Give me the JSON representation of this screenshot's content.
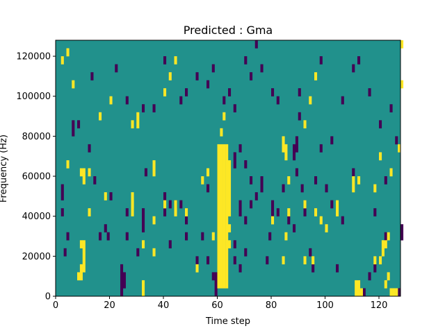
{
  "chart_data": {
    "type": "heatmap",
    "title": "Predicted : Gma",
    "xlabel": "Time step",
    "ylabel": "Frequency (Hz)",
    "xlim": [
      0,
      128
    ],
    "ylim": [
      0,
      128000
    ],
    "x_ticks": [
      0,
      20,
      40,
      60,
      80,
      100,
      120
    ],
    "y_ticks": [
      0,
      20000,
      40000,
      60000,
      80000,
      100000,
      120000
    ],
    "x_tick_labels": [
      "0",
      "20",
      "40",
      "60",
      "80",
      "100",
      "120"
    ],
    "y_tick_labels": [
      "0",
      "20000",
      "40000",
      "60000",
      "80000",
      "100000",
      "120000"
    ],
    "grid": false,
    "colormap": "viridis",
    "colors": {
      "background": "#21918c",
      "high": "#fde725",
      "low": "#440154"
    },
    "cell_height_hz": 4000,
    "background_level": 0.5,
    "cells_note_levels": {
      "high": 1,
      "low": 0
    },
    "high_cells": [
      [
        60,
        4000,
        76000
      ],
      [
        61,
        4000,
        76000
      ],
      [
        62,
        4000,
        76000
      ],
      [
        63,
        4000,
        76000
      ],
      [
        64,
        24000,
        28000
      ],
      [
        64,
        32000,
        36000
      ],
      [
        64,
        40000,
        68000
      ],
      [
        61,
        80000,
        84000
      ],
      [
        62,
        88000,
        92000
      ],
      [
        111,
        0,
        8000
      ],
      [
        112,
        0,
        8000
      ],
      [
        113,
        0,
        4000
      ],
      [
        124,
        0,
        4000
      ],
      [
        125,
        0,
        4000
      ],
      [
        126,
        0,
        4000
      ],
      [
        8,
        8000,
        12000
      ],
      [
        9,
        8000,
        16000
      ],
      [
        10,
        12000,
        24000
      ],
      [
        9,
        24000,
        28000
      ],
      [
        10,
        24000,
        28000
      ],
      [
        12,
        40000,
        44000
      ],
      [
        12,
        60000,
        64000
      ],
      [
        9,
        60000,
        64000
      ],
      [
        10,
        56000,
        64000
      ],
      [
        18,
        48000,
        52000
      ],
      [
        28,
        44000,
        48000
      ],
      [
        28,
        40000,
        52000
      ],
      [
        32,
        24000,
        28000
      ],
      [
        32,
        0,
        8000
      ],
      [
        36,
        20000,
        24000
      ],
      [
        36,
        36000,
        40000
      ],
      [
        36,
        60000,
        64000
      ],
      [
        36,
        64000,
        68000
      ],
      [
        40,
        44000,
        48000
      ],
      [
        44,
        40000,
        48000
      ],
      [
        48,
        40000,
        44000
      ],
      [
        52,
        12000,
        16000
      ],
      [
        16,
        88000,
        92000
      ],
      [
        20,
        96000,
        100000
      ],
      [
        28,
        84000,
        88000
      ],
      [
        30,
        84000,
        92000
      ],
      [
        40,
        100000,
        104000
      ],
      [
        42,
        108000,
        112000
      ],
      [
        44,
        116000,
        120000
      ],
      [
        54,
        56000,
        60000
      ],
      [
        56,
        60000,
        64000
      ],
      [
        58,
        28000,
        32000
      ],
      [
        80,
        36000,
        40000
      ],
      [
        84,
        16000,
        20000
      ],
      [
        85,
        28000,
        32000
      ],
      [
        86,
        40000,
        44000
      ],
      [
        84,
        72000,
        80000
      ],
      [
        85,
        68000,
        76000
      ],
      [
        86,
        56000,
        60000
      ],
      [
        92,
        16000,
        20000
      ],
      [
        95,
        16000,
        20000
      ],
      [
        92,
        44000,
        48000
      ],
      [
        96,
        40000,
        44000
      ],
      [
        98,
        36000,
        40000
      ],
      [
        92,
        84000,
        88000
      ],
      [
        94,
        96000,
        100000
      ],
      [
        96,
        108000,
        112000
      ],
      [
        100,
        32000,
        36000
      ],
      [
        104,
        40000,
        48000
      ],
      [
        110,
        52000,
        60000
      ],
      [
        112,
        56000,
        60000
      ],
      [
        118,
        16000,
        20000
      ],
      [
        120,
        16000,
        20000
      ],
      [
        121,
        20000,
        28000
      ],
      [
        122,
        24000,
        28000
      ],
      [
        123,
        28000,
        32000
      ],
      [
        118,
        52000,
        56000
      ],
      [
        120,
        68000,
        72000
      ],
      [
        122,
        4000,
        8000
      ],
      [
        123,
        8000,
        12000
      ],
      [
        128,
        104000,
        108000
      ],
      [
        128,
        124000,
        128000
      ],
      [
        2,
        116000,
        120000
      ],
      [
        4,
        120000,
        124000
      ],
      [
        4,
        64000,
        68000
      ],
      [
        6,
        104000,
        108000
      ],
      [
        124,
        60000,
        64000
      ],
      [
        127,
        72000,
        76000
      ]
    ],
    "low_cells": [
      [
        2,
        40000,
        44000
      ],
      [
        3,
        20000,
        24000
      ],
      [
        4,
        28000,
        32000
      ],
      [
        2,
        48000,
        56000
      ],
      [
        6,
        80000,
        88000
      ],
      [
        8,
        84000,
        88000
      ],
      [
        12,
        72000,
        76000
      ],
      [
        14,
        56000,
        60000
      ],
      [
        16,
        28000,
        32000
      ],
      [
        18,
        32000,
        36000
      ],
      [
        19,
        28000,
        32000
      ],
      [
        20,
        48000,
        52000
      ],
      [
        24,
        0,
        16000
      ],
      [
        25,
        4000,
        12000
      ],
      [
        26,
        28000,
        32000
      ],
      [
        26,
        40000,
        44000
      ],
      [
        30,
        20000,
        24000
      ],
      [
        32,
        32000,
        44000
      ],
      [
        33,
        60000,
        64000
      ],
      [
        40,
        48000,
        52000
      ],
      [
        40,
        40000,
        44000
      ],
      [
        42,
        44000,
        48000
      ],
      [
        42,
        24000,
        28000
      ],
      [
        44,
        44000,
        48000
      ],
      [
        46,
        44000,
        48000
      ],
      [
        48,
        36000,
        40000
      ],
      [
        48,
        28000,
        32000
      ],
      [
        52,
        16000,
        20000
      ],
      [
        54,
        28000,
        32000
      ],
      [
        56,
        16000,
        20000
      ],
      [
        58,
        8000,
        12000
      ],
      [
        59,
        0,
        12000
      ],
      [
        60,
        32000,
        36000
      ],
      [
        56,
        52000,
        56000
      ],
      [
        66,
        16000,
        20000
      ],
      [
        66,
        24000,
        28000
      ],
      [
        68,
        12000,
        16000
      ],
      [
        70,
        20000,
        24000
      ],
      [
        68,
        40000,
        48000
      ],
      [
        70,
        36000,
        40000
      ],
      [
        72,
        44000,
        48000
      ],
      [
        74,
        48000,
        52000
      ],
      [
        76,
        52000,
        60000
      ],
      [
        78,
        16000,
        20000
      ],
      [
        66,
        64000,
        72000
      ],
      [
        68,
        72000,
        76000
      ],
      [
        70,
        64000,
        68000
      ],
      [
        72,
        56000,
        60000
      ],
      [
        79,
        28000,
        32000
      ],
      [
        80,
        40000,
        48000
      ],
      [
        82,
        40000,
        44000
      ],
      [
        84,
        52000,
        56000
      ],
      [
        86,
        36000,
        40000
      ],
      [
        88,
        32000,
        36000
      ],
      [
        89,
        60000,
        64000
      ],
      [
        88,
        68000,
        76000
      ],
      [
        89,
        72000,
        80000
      ],
      [
        91,
        52000,
        56000
      ],
      [
        92,
        40000,
        48000
      ],
      [
        94,
        20000,
        24000
      ],
      [
        95,
        12000,
        16000
      ],
      [
        96,
        56000,
        60000
      ],
      [
        100,
        52000,
        56000
      ],
      [
        102,
        44000,
        48000
      ],
      [
        104,
        12000,
        16000
      ],
      [
        106,
        36000,
        40000
      ],
      [
        110,
        60000,
        64000
      ],
      [
        112,
        4000,
        8000
      ],
      [
        114,
        0,
        4000
      ],
      [
        116,
        8000,
        12000
      ],
      [
        118,
        12000,
        16000
      ],
      [
        118,
        40000,
        44000
      ],
      [
        122,
        56000,
        60000
      ],
      [
        122,
        28000,
        32000
      ],
      [
        128,
        28000,
        36000
      ],
      [
        127,
        0,
        4000
      ],
      [
        13,
        108000,
        112000
      ],
      [
        22,
        112000,
        116000
      ],
      [
        26,
        96000,
        100000
      ],
      [
        32,
        92000,
        96000
      ],
      [
        36,
        92000,
        96000
      ],
      [
        40,
        116000,
        120000
      ],
      [
        46,
        96000,
        100000
      ],
      [
        48,
        100000,
        104000
      ],
      [
        52,
        108000,
        112000
      ],
      [
        56,
        104000,
        108000
      ],
      [
        58,
        112000,
        116000
      ],
      [
        62,
        96000,
        100000
      ],
      [
        64,
        100000,
        104000
      ],
      [
        66,
        92000,
        96000
      ],
      [
        70,
        116000,
        120000
      ],
      [
        72,
        108000,
        112000
      ],
      [
        74,
        124000,
        128000
      ],
      [
        76,
        112000,
        116000
      ],
      [
        80,
        100000,
        104000
      ],
      [
        82,
        96000,
        100000
      ],
      [
        90,
        88000,
        92000
      ],
      [
        90,
        100000,
        104000
      ],
      [
        98,
        116000,
        120000
      ],
      [
        106,
        96000,
        100000
      ],
      [
        110,
        112000,
        116000
      ],
      [
        112,
        116000,
        120000
      ],
      [
        116,
        100000,
        104000
      ],
      [
        120,
        84000,
        88000
      ],
      [
        124,
        92000,
        96000
      ],
      [
        126,
        76000,
        80000
      ],
      [
        98,
        72000,
        76000
      ],
      [
        102,
        76000,
        80000
      ]
    ]
  }
}
